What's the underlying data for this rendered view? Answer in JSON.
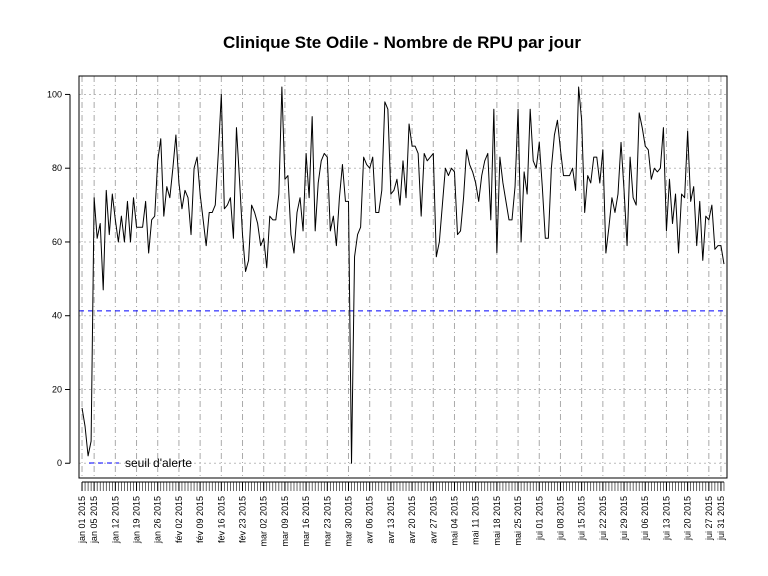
{
  "chart_data": {
    "type": "line",
    "title": "Clinique Ste Odile  - Nombre de RPU par jour",
    "xlabel": "",
    "ylabel": "",
    "ylim": [
      -4,
      105
    ],
    "y_ticks": [
      0,
      20,
      40,
      60,
      80,
      100
    ],
    "x_range": [
      "2014-12-31",
      "2015-08-02"
    ],
    "grid": true,
    "x_ticks": [
      {
        "date": "2015-01-01",
        "label": "jan 01 2015"
      },
      {
        "date": "2015-01-05",
        "label": "jan 05 2015"
      },
      {
        "date": "2015-01-12",
        "label": "jan 12 2015"
      },
      {
        "date": "2015-01-19",
        "label": "jan 19 2015"
      },
      {
        "date": "2015-01-26",
        "label": "jan 26 2015"
      },
      {
        "date": "2015-02-02",
        "label": "fév 02 2015"
      },
      {
        "date": "2015-02-09",
        "label": "fév 09 2015"
      },
      {
        "date": "2015-02-16",
        "label": "fév 16 2015"
      },
      {
        "date": "2015-02-23",
        "label": "fév 23 2015"
      },
      {
        "date": "2015-03-02",
        "label": "mar 02 2015"
      },
      {
        "date": "2015-03-09",
        "label": "mar 09 2015"
      },
      {
        "date": "2015-03-16",
        "label": "mar 16 2015"
      },
      {
        "date": "2015-03-23",
        "label": "mar 23 2015"
      },
      {
        "date": "2015-03-30",
        "label": "mar 30 2015"
      },
      {
        "date": "2015-04-06",
        "label": "avr 06 2015"
      },
      {
        "date": "2015-04-13",
        "label": "avr 13 2015"
      },
      {
        "date": "2015-04-20",
        "label": "avr 20 2015"
      },
      {
        "date": "2015-04-27",
        "label": "avr 27 2015"
      },
      {
        "date": "2015-05-04",
        "label": "mai 04 2015"
      },
      {
        "date": "2015-05-11",
        "label": "mai 11 2015"
      },
      {
        "date": "2015-05-18",
        "label": "mai 18 2015"
      },
      {
        "date": "2015-05-25",
        "label": "mai 25 2015"
      },
      {
        "date": "2015-06-01",
        "label": "jui 01 2015"
      },
      {
        "date": "2015-06-08",
        "label": "jui 08 2015"
      },
      {
        "date": "2015-06-15",
        "label": "jui 15 2015"
      },
      {
        "date": "2015-06-22",
        "label": "jui 22 2015"
      },
      {
        "date": "2015-06-29",
        "label": "jui 29 2015"
      },
      {
        "date": "2015-07-06",
        "label": "jui 06 2015"
      },
      {
        "date": "2015-07-13",
        "label": "jui 13 2015"
      },
      {
        "date": "2015-07-20",
        "label": "jui 20 2015"
      },
      {
        "date": "2015-07-27",
        "label": "jui 27 2015"
      },
      {
        "date": "2015-07-31",
        "label": "jui 31 2015"
      }
    ],
    "series": [
      {
        "color": "#000000",
        "start_date": "2015-01-01",
        "values": [
          15,
          10,
          2,
          6,
          72,
          61,
          65,
          47,
          74,
          62,
          73,
          66,
          60,
          67,
          60,
          71,
          60,
          72,
          64,
          64,
          64,
          71,
          57,
          66,
          67,
          82,
          88,
          67,
          75,
          72,
          80,
          89,
          76,
          69,
          74,
          72,
          62,
          80,
          83,
          73,
          66,
          59,
          68,
          68,
          70,
          84,
          100,
          69,
          70,
          72,
          61,
          91,
          77,
          62,
          52,
          55,
          70,
          68,
          65,
          59,
          61,
          53,
          67,
          66,
          66,
          73,
          102,
          77,
          78,
          62,
          57,
          68,
          72,
          63,
          84,
          72,
          94,
          63,
          76,
          82,
          84,
          83,
          63,
          67,
          59,
          72,
          81,
          71,
          71,
          0,
          56,
          62,
          64,
          83,
          81,
          80,
          83,
          68,
          68,
          74,
          98,
          96,
          73,
          74,
          77,
          70,
          82,
          72,
          92,
          86,
          86,
          84,
          67,
          84,
          82,
          83,
          84,
          56,
          60,
          70,
          80,
          78,
          80,
          79,
          62,
          63,
          72,
          85,
          81,
          79,
          76,
          71,
          78,
          82,
          84,
          66,
          96,
          57,
          83,
          76,
          71,
          66,
          66,
          75,
          96,
          60,
          79,
          73,
          96,
          82,
          80,
          87,
          75,
          61,
          61,
          80,
          89,
          93,
          85,
          78,
          78,
          78,
          80,
          74,
          102,
          93,
          68,
          78,
          76,
          83,
          83,
          76,
          85,
          57,
          64,
          72,
          68,
          73,
          87,
          74,
          59,
          83,
          72,
          70,
          95,
          91,
          86,
          85,
          77,
          80,
          79,
          80,
          91,
          63,
          77,
          65,
          73,
          57,
          73,
          72,
          90,
          71,
          75,
          59,
          71,
          55,
          67,
          66,
          70,
          58,
          59,
          59,
          54
        ]
      },
      {
        "name": "seuil d'alerte",
        "type": "hline",
        "value": 41.3,
        "color": "#0000ff",
        "dash": "dashed"
      }
    ],
    "legend": {
      "position": "bottom-left",
      "entries": [
        {
          "label": "seuil d'alerte",
          "color": "#0000ff",
          "dash": "dashed"
        }
      ]
    }
  }
}
